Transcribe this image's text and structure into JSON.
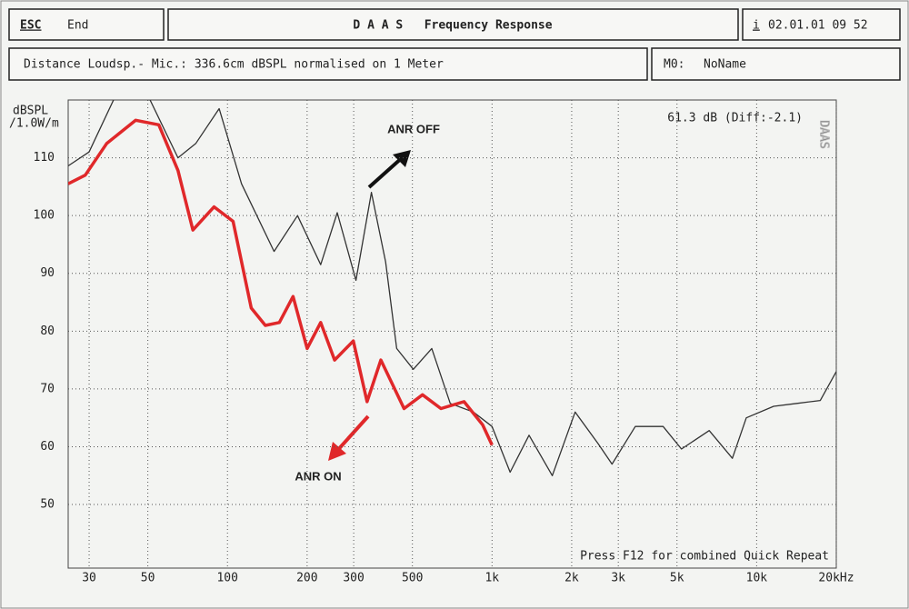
{
  "header": {
    "left_key": "ESC",
    "left_label": "End",
    "title": "D A A S   Frequency Response",
    "right_key": "i",
    "right_label": "02.01.01 09 52"
  },
  "info": {
    "text": "Distance Loudsp.- Mic.: 336.6cm dBSPL normalised on 1 Meter",
    "memory_key": "M0:",
    "memory_name": "NoName"
  },
  "chart_data": {
    "type": "line",
    "ylabel": [
      "dBSPL",
      "/1.0W/m"
    ],
    "xscale": "log",
    "xlim": [
      25,
      20000
    ],
    "ylim": [
      39,
      120
    ],
    "xticks": [
      30,
      50,
      100,
      200,
      300,
      500,
      {
        "value": 1000,
        "label": "1k"
      },
      {
        "value": 2000,
        "label": "2k"
      },
      {
        "value": 3000,
        "label": "3k"
      },
      {
        "value": 5000,
        "label": "5k"
      },
      {
        "value": 10000,
        "label": "10k"
      },
      {
        "value": 20000,
        "label": "20kHz"
      }
    ],
    "yticks": [
      50,
      60,
      70,
      80,
      90,
      100,
      110
    ],
    "grid": true,
    "series": [
      {
        "name": "ANR OFF",
        "color": "#333333",
        "x": [
          25,
          30,
          38,
          51,
          65,
          76,
          93,
          113,
          150,
          184,
          225,
          260,
          306,
          350,
          396,
          436,
          504,
          592,
          695,
          850,
          1000,
          1170,
          1380,
          1690,
          2060,
          2520,
          2840,
          3480,
          4430,
          5200,
          6620,
          8100,
          9140,
          11600,
          14200,
          17400,
          20000
        ],
        "values": [
          108.6,
          111,
          121,
          120,
          110,
          112.5,
          118.5,
          105.5,
          93.8,
          100,
          91.5,
          100.5,
          88.8,
          104,
          92,
          77,
          73.4,
          77,
          67.5,
          66,
          63.5,
          55.6,
          62,
          55,
          66,
          60.5,
          57,
          63.5,
          63.5,
          59.6,
          62.8,
          58,
          65,
          67,
          67.5,
          68,
          73
        ]
      },
      {
        "name": "ANR ON",
        "color": "#e0282a",
        "x": [
          25,
          29,
          35,
          45,
          55,
          65,
          74,
          89,
          105,
          123,
          139,
          157,
          177,
          200,
          225,
          254,
          299,
          337,
          380,
          465,
          546,
          641,
          784,
          921,
          1000
        ],
        "values": [
          105.5,
          107,
          112.5,
          116.5,
          115.7,
          107.8,
          97.5,
          101.5,
          99,
          84,
          81,
          81.5,
          86,
          77,
          81.5,
          75,
          78.3,
          67.8,
          75,
          66.6,
          69,
          66.6,
          67.8,
          63.8,
          60.3
        ]
      }
    ],
    "annotations": [
      "61.3 dB (Diff:-2.1)",
      "Press F12 for combined Quick Repeat"
    ],
    "watermark": "DAAS"
  }
}
